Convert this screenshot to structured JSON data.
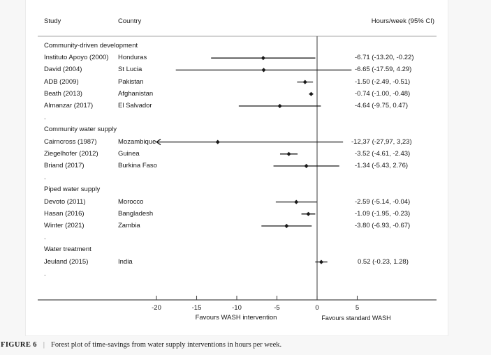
{
  "figure": {
    "header": {
      "study": "Study",
      "country": "Country",
      "effect": "Hours/week (95% CI)"
    },
    "group_spacer": "."
  },
  "caption": {
    "label": "FIGURE 6",
    "separator": "|",
    "text": "Forest plot of time-savings from water supply interventions in hours per week."
  },
  "colors": {
    "ci_line": "#1a1a1a",
    "marker": "#1a1a1a",
    "axis": "#4a4a4a",
    "header_rule": "#a6a6a6",
    "text": "#161616"
  },
  "chart_data": {
    "type": "forest",
    "title": "",
    "xlabel_left": "Favours WASH intervention",
    "xlabel_right": "Favours standard WASH",
    "effect_unit": "Hours/week (95% CI)",
    "axis": {
      "ticks": [
        -20,
        -15,
        -10,
        -5,
        0,
        5
      ],
      "zero_line": 0,
      "clip_min": -20,
      "grid": false
    },
    "groups": [
      {
        "label": "Community-driven development",
        "rows": [
          {
            "study": "Instituto Apoyo (2000)",
            "country": "Honduras",
            "est": -6.71,
            "lo": -13.2,
            "hi": -0.22,
            "ci_text": "-6.71 (-13.20, -0.22)"
          },
          {
            "study": "David (2004)",
            "country": "St Lucia",
            "est": -6.65,
            "lo": -17.59,
            "hi": 4.29,
            "ci_text": "-6.65 (-17.59, 4.29)"
          },
          {
            "study": "ADB (2009)",
            "country": "Pakistan",
            "est": -1.5,
            "lo": -2.49,
            "hi": -0.51,
            "ci_text": "-1.50 (-2.49, -0.51)"
          },
          {
            "study": "Beath (2013)",
            "country": "Afghanistan",
            "est": -0.74,
            "lo": -1.0,
            "hi": -0.48,
            "ci_text": "-0.74 (-1.00, -0.48)"
          },
          {
            "study": "Almanzar (2017)",
            "country": "El Salvador",
            "est": -4.64,
            "lo": -9.75,
            "hi": 0.47,
            "ci_text": "-4.64 (-9.75, 0.47)"
          }
        ]
      },
      {
        "label": "Community water supply",
        "rows": [
          {
            "study": "Cairncross (1987)",
            "country": "Mozambique",
            "est": -12.37,
            "lo": -27.97,
            "hi": 3.23,
            "ci_text": "-12,37 (-27,97, 3,23)",
            "clipped_left": true
          },
          {
            "study": "Ziegelhofer (2012)",
            "country": "Guinea",
            "est": -3.52,
            "lo": -4.61,
            "hi": -2.43,
            "ci_text": "-3.52 (-4.61, -2.43)"
          },
          {
            "study": "Briand (2017)",
            "country": "Burkina Faso",
            "est": -1.34,
            "lo": -5.43,
            "hi": 2.76,
            "ci_text": "-1.34 (-5.43, 2.76)"
          }
        ]
      },
      {
        "label": "Piped water supply",
        "rows": [
          {
            "study": "Devoto (2011)",
            "country": "Morocco",
            "est": -2.59,
            "lo": -5.14,
            "hi": -0.04,
            "ci_text": "-2.59 (-5.14, -0.04)"
          },
          {
            "study": "Hasan (2016)",
            "country": "Bangladesh",
            "est": -1.09,
            "lo": -1.95,
            "hi": -0.23,
            "ci_text": "-1.09 (-1.95, -0.23)"
          },
          {
            "study": "Winter (2021)",
            "country": "Zambia",
            "est": -3.8,
            "lo": -6.93,
            "hi": -0.67,
            "ci_text": "-3.80 (-6.93, -0.67)"
          }
        ]
      },
      {
        "label": "Water treatment",
        "rows": [
          {
            "study": "Jeuland (2015)",
            "country": "India",
            "est": 0.52,
            "lo": -0.23,
            "hi": 1.28,
            "ci_text": "0.52 (-0.23, 1.28)"
          }
        ]
      }
    ]
  }
}
